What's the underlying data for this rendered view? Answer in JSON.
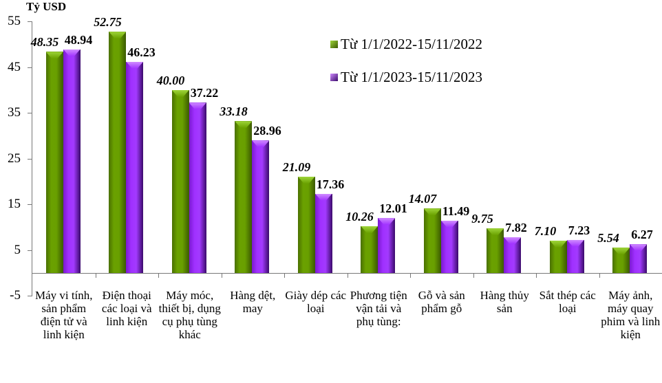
{
  "chart_data": {
    "type": "bar",
    "title": "",
    "ylabel": "Tỷ USD",
    "xlabel": "",
    "ylim": [
      -5,
      55
    ],
    "yticks": [
      55,
      45,
      35,
      25,
      15,
      5,
      -5
    ],
    "grid": false,
    "legend_position": "upper-right",
    "categories": [
      "Máy vi tính, sản phẩm điện tử và linh kiện",
      "Điện thoại các loại và linh kiện",
      "Máy móc, thiết bị, dụng cụ phụ tùng khác",
      "Hàng dệt, may",
      "Giày dép các loại",
      "Phương tiện vận tải và phụ tùng:",
      "Gỗ và sản phẩm gỗ",
      "Hàng thủy sản",
      "Sắt thép các loại",
      "Máy ảnh, máy quay phim và linh kiện"
    ],
    "series": [
      {
        "name": "Từ 1/1/2022-15/11/2022",
        "color": "#6aa100",
        "values": [
          48.35,
          52.75,
          40.0,
          33.18,
          21.09,
          10.26,
          14.07,
          9.75,
          7.1,
          5.54
        ]
      },
      {
        "name": "Từ 1/1/2023-15/11/2023",
        "color": "#a030ff",
        "values": [
          48.94,
          46.23,
          37.22,
          28.96,
          17.36,
          12.01,
          11.49,
          7.82,
          7.23,
          6.27
        ]
      }
    ],
    "value_labels": [
      [
        "48.35",
        "52.75",
        "40.00",
        "33.18",
        "21.09",
        "10.26",
        "14.07",
        "9.75",
        "7.10",
        "5.54"
      ],
      [
        "48.94",
        "46.23",
        "37.22",
        "28.96",
        "17.36",
        "12.01",
        "11.49",
        "7.82",
        "7.23",
        "6.27"
      ]
    ]
  },
  "axis": {
    "unit_label": "Tỷ USD"
  },
  "legend": [
    {
      "label": "Từ 1/1/2022-15/11/2022",
      "color": "#6aa100"
    },
    {
      "label": "Từ 1/1/2023-15/11/2023",
      "color": "#a030ff"
    }
  ]
}
